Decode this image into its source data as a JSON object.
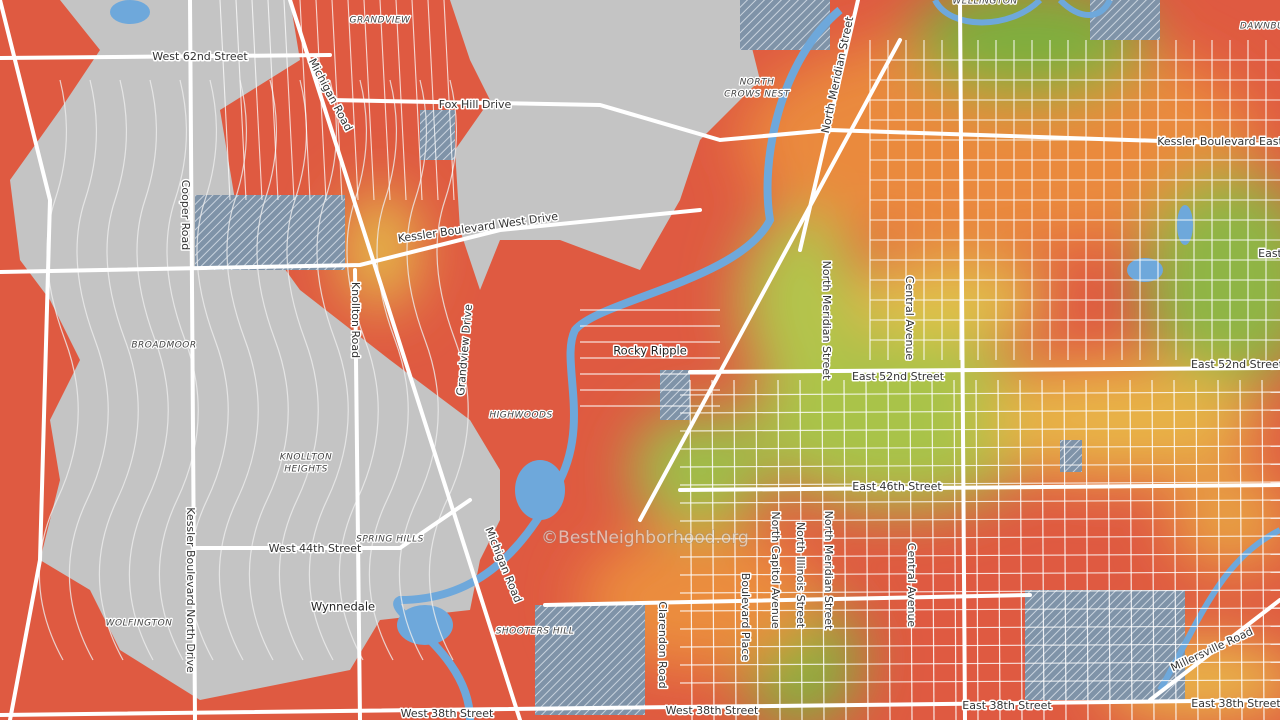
{
  "map": {
    "streets": [
      "West 62nd Street",
      "Michigan Road",
      "Fox Hill Drive",
      "North Meridian Street",
      "Kessler Boulevard East",
      "Cooper Road",
      "Kessler Boulevard West Drive",
      "Knollton Road",
      "Grandview Drive",
      "North Meridian Street",
      "Central Avenue",
      "East 52nd Street",
      "East 52nd Street",
      "East",
      "East 46th Street",
      "Kessler Boulevard North Drive",
      "West 44th Street",
      "North Capitol Avenue",
      "North Illinois Street",
      "North Meridian Street",
      "Central Avenue",
      "Boulevard Place",
      "Clarendon Road",
      "Michigan Road",
      "Millersville Road",
      "West 38th Street",
      "West 38th Street",
      "East 38th Street",
      "East 38th Street"
    ],
    "places": [
      "Rocky Ripple",
      "Wynnedale"
    ],
    "neighborhoods": [
      "GRANDVIEW",
      "NORTH",
      "CROWS NEST",
      "WELLINGTON",
      "DAWNBU",
      "BROADMOOR",
      "HIGHWOODS",
      "KNOLLTON",
      "HEIGHTS",
      "SPRING HILLS",
      "WOLFINGTON",
      "SHOOTERS HILL"
    ],
    "watermark": "©BestNeighborhood.org"
  }
}
